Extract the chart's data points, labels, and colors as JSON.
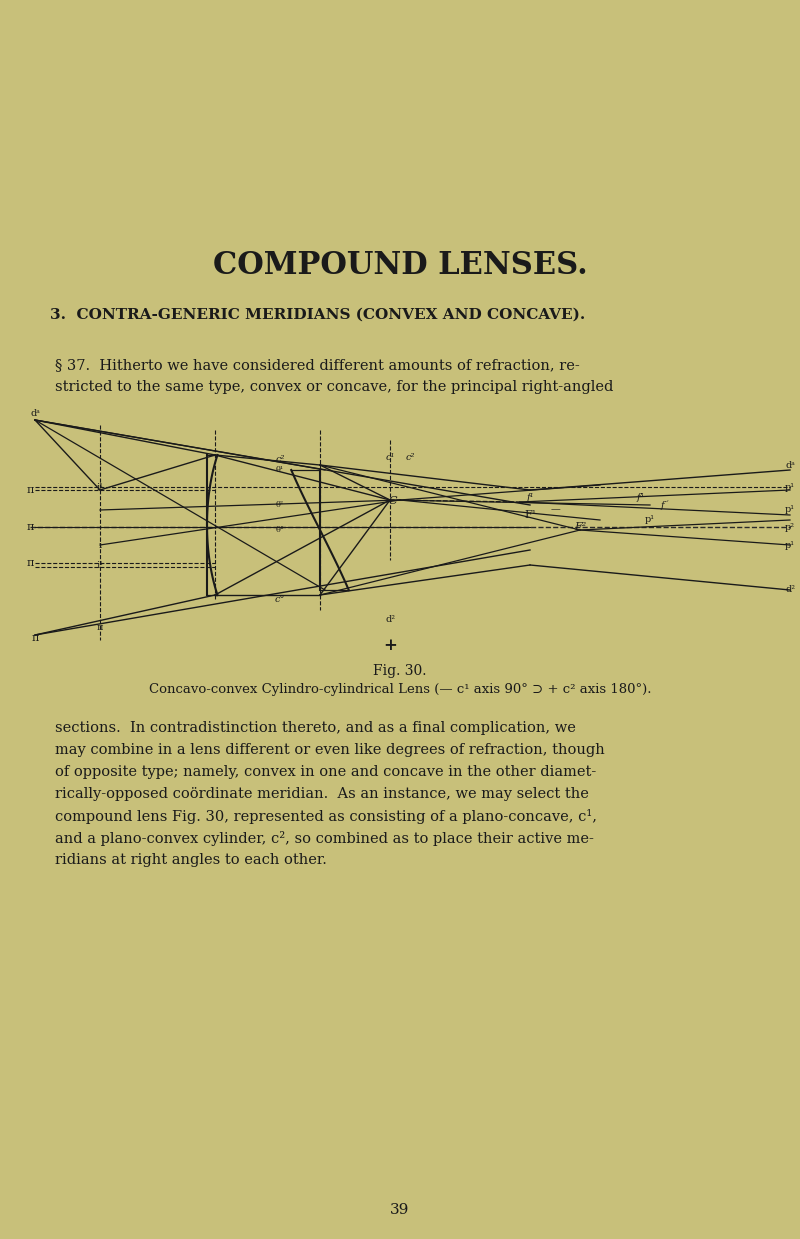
{
  "bg_color": "#c8c07a",
  "text_color": "#1a1a1a",
  "title": "COMPOUND LENSES.",
  "section_heading": "3.  CONTRA-GENERIC MERIDIANS (CONVEX AND CONCAVE).",
  "para1": "§ 37.  Hitherto we have considered different amounts of refraction, re-\nstricted to the same type, convex or concave, for the principal right-angled",
  "fig_caption": "Fig. 30.",
  "fig_subcaption": "Concavo-convex Cylindro-cylindrical Lens (— c¹ axis 90° ⊃ + c² axis 180°).",
  "para2": "sections.  In contradistinction thereto, and as a final complication, we\nmay combine in a lens different or even like degrees of refraction, though\nof opposite type; namely, convex in one and concave in the other diamet-\nrically-opposed coördinate meridian.  As an instance, we may select the\ncompound lens Fig. 30, represented as consisting of a plano-concave, c¹,\nand a plano-convex cylinder, c², so combined as to place their active me-\nridians at right angles to each other.",
  "page_number": "39"
}
